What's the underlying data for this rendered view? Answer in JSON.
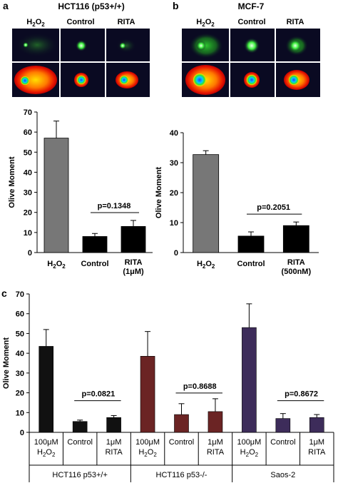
{
  "panels": {
    "a": {
      "letter": "a",
      "title": "HCT116 (p53+/+)",
      "comet_labels": [
        "H2O2",
        "Control",
        "RITA"
      ]
    },
    "b": {
      "letter": "b",
      "title": "MCF-7",
      "comet_labels": [
        "H2O2",
        "Control",
        "RITA"
      ]
    },
    "c": {
      "letter": "c"
    }
  },
  "colors": {
    "h2o2_bar": "#777777",
    "black_bar": "#000000",
    "hct_wt": "#111111",
    "hct_null": "#6b2424",
    "saos": "#3d2c5a",
    "comet_bg": "#0a0a22"
  },
  "chart_data": [
    {
      "type": "bar",
      "panel": "a",
      "categories": [
        "H2O2",
        "Control",
        "RITA (1μM)"
      ],
      "values": [
        57,
        8,
        13
      ],
      "errors": [
        8.5,
        1.5,
        3
      ],
      "colors": [
        "#777777",
        "#000000",
        "#000000"
      ],
      "ylabel": "Olive Moment",
      "ylim": [
        0,
        70
      ],
      "yticks": [
        0,
        10,
        20,
        30,
        40,
        50,
        60,
        70
      ],
      "annotation": "p=0.1348"
    },
    {
      "type": "bar",
      "panel": "b",
      "categories": [
        "H2O2",
        "Control",
        "RITA (500nM)"
      ],
      "values": [
        32.7,
        5.5,
        9
      ],
      "errors": [
        1.3,
        1.4,
        1.2
      ],
      "colors": [
        "#777777",
        "#000000",
        "#000000"
      ],
      "ylabel": "Olive Moment",
      "ylim": [
        0,
        40
      ],
      "yticks": [
        0,
        10,
        20,
        30,
        40
      ],
      "annotation": "p=0.2051"
    },
    {
      "type": "bar",
      "panel": "c",
      "ylabel": "Olive Moment",
      "ylim": [
        0,
        70
      ],
      "yticks": [
        0,
        10,
        20,
        30,
        40,
        50,
        60,
        70
      ],
      "groups": [
        {
          "name": "HCT116 p53+/+",
          "color": "#111111",
          "categories": [
            "100μM H2O2",
            "Control",
            "1μM RITA"
          ],
          "values": [
            43.5,
            5.5,
            7.5
          ],
          "errors": [
            8.5,
            0.7,
            1
          ],
          "annotation": "p=0.0821"
        },
        {
          "name": "HCT116 p53-/-",
          "color": "#6b2424",
          "categories": [
            "100μM H2O2",
            "Control",
            "1μM RITA"
          ],
          "values": [
            38.5,
            9,
            10.5
          ],
          "errors": [
            12.5,
            5.5,
            6.5
          ],
          "annotation": "p=0.8688"
        },
        {
          "name": "Saos-2",
          "color": "#3d2c5a",
          "categories": [
            "100μM H2O2",
            "Control",
            "1μM RITA"
          ],
          "values": [
            53,
            7,
            7.5
          ],
          "errors": [
            12,
            2.5,
            1.5
          ],
          "annotation": "p=0.8672"
        }
      ]
    }
  ]
}
